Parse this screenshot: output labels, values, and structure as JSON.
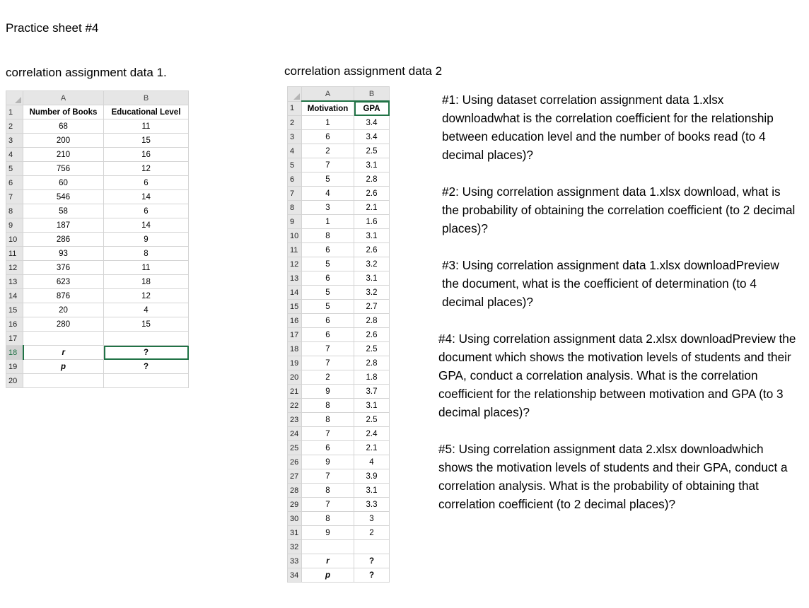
{
  "page": {
    "title": "Practice sheet #4"
  },
  "dataset1": {
    "title": "correlation assignment data 1.",
    "col_headers": [
      "A",
      "B"
    ],
    "header_row": [
      "Number of Books",
      "Educational Level"
    ],
    "rows": [
      [
        "68",
        "11"
      ],
      [
        "200",
        "15"
      ],
      [
        "210",
        "16"
      ],
      [
        "756",
        "12"
      ],
      [
        "60",
        "6"
      ],
      [
        "546",
        "14"
      ],
      [
        "58",
        "6"
      ],
      [
        "187",
        "14"
      ],
      [
        "286",
        "9"
      ],
      [
        "93",
        "8"
      ],
      [
        "376",
        "11"
      ],
      [
        "623",
        "18"
      ],
      [
        "876",
        "12"
      ],
      [
        "20",
        "4"
      ],
      [
        "280",
        "15"
      ]
    ],
    "stat_rows": [
      [
        "r",
        "?"
      ],
      [
        "p",
        "?"
      ]
    ],
    "row_numbers": [
      "1",
      "2",
      "3",
      "4",
      "5",
      "6",
      "7",
      "8",
      "9",
      "10",
      "11",
      "12",
      "13",
      "14",
      "15",
      "16",
      "17",
      "18",
      "19",
      "20"
    ]
  },
  "dataset2": {
    "title": "correlation assignment data 2",
    "col_headers": [
      "A",
      "B"
    ],
    "header_row": [
      "Motivation",
      "GPA"
    ],
    "rows": [
      [
        "1",
        "3.4"
      ],
      [
        "6",
        "3.4"
      ],
      [
        "2",
        "2.5"
      ],
      [
        "7",
        "3.1"
      ],
      [
        "5",
        "2.8"
      ],
      [
        "4",
        "2.6"
      ],
      [
        "3",
        "2.1"
      ],
      [
        "1",
        "1.6"
      ],
      [
        "8",
        "3.1"
      ],
      [
        "6",
        "2.6"
      ],
      [
        "5",
        "3.2"
      ],
      [
        "6",
        "3.1"
      ],
      [
        "5",
        "3.2"
      ],
      [
        "5",
        "2.7"
      ],
      [
        "6",
        "2.8"
      ],
      [
        "6",
        "2.6"
      ],
      [
        "7",
        "2.5"
      ],
      [
        "7",
        "2.8"
      ],
      [
        "2",
        "1.8"
      ],
      [
        "9",
        "3.7"
      ],
      [
        "8",
        "3.1"
      ],
      [
        "8",
        "2.5"
      ],
      [
        "7",
        "2.4"
      ],
      [
        "6",
        "2.1"
      ],
      [
        "9",
        "4"
      ],
      [
        "7",
        "3.9"
      ],
      [
        "8",
        "3.1"
      ],
      [
        "7",
        "3.3"
      ],
      [
        "8",
        "3"
      ],
      [
        "9",
        "2"
      ]
    ],
    "stat_rows": [
      [
        "r",
        "?"
      ],
      [
        "p",
        "?"
      ]
    ],
    "row_numbers": [
      "1",
      "2",
      "3",
      "4",
      "5",
      "6",
      "7",
      "8",
      "9",
      "10",
      "11",
      "12",
      "13",
      "14",
      "15",
      "16",
      "17",
      "18",
      "19",
      "20",
      "21",
      "22",
      "23",
      "24",
      "25",
      "26",
      "27",
      "28",
      "29",
      "30",
      "31",
      "32",
      "33",
      "34"
    ]
  },
  "questions": [
    "#1: Using dataset correlation assignment data 1.xlsx downloadwhat is the correlation coefficient for the relationship between education level and the number of books read (to 4 decimal places)?",
    "#2: Using correlation assignment data 1.xlsx  download, what is the probability of obtaining the correlation coefficient (to 2 decimal places)?",
    "#3: Using correlation assignment data 1.xlsx downloadPreview the document, what is the coefficient of determination (to 4 decimal places)?",
    "#4: Using correlation assignment data 2.xlsx downloadPreview the document which shows the motivation levels of students and their GPA, conduct a correlation analysis. What is  the correlation coefficient for the relationship between motivation and GPA (to 3 decimal places)?",
    "#5: Using correlation assignment data 2.xlsx downloadwhich shows the motivation levels of students and their GPA, conduct a correlation analysis. What is the probability of obtaining that correlation coefficient (to 2 decimal places)?"
  ],
  "colors": {
    "excel_green": "#217346",
    "header_gray": "#e6e6e6",
    "grid": "#d4d4d4"
  }
}
